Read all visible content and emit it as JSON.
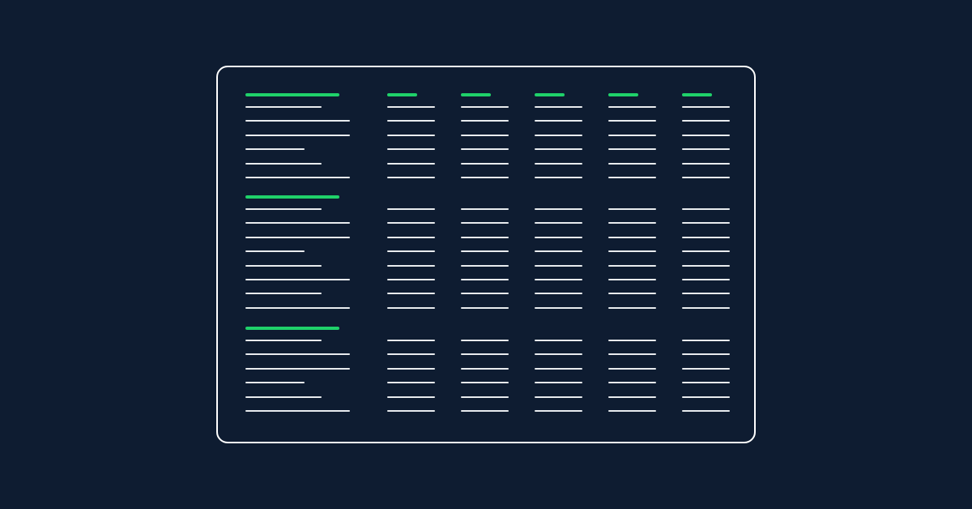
{
  "colors": {
    "background": "#0e1c31",
    "panel_border": "#ffffff",
    "accent": "#1fd16a",
    "line": "#e9ecef"
  },
  "sections": [
    {
      "rows": 6
    },
    {
      "rows": 8
    },
    {
      "rows": 6
    }
  ],
  "data_columns": 5
}
